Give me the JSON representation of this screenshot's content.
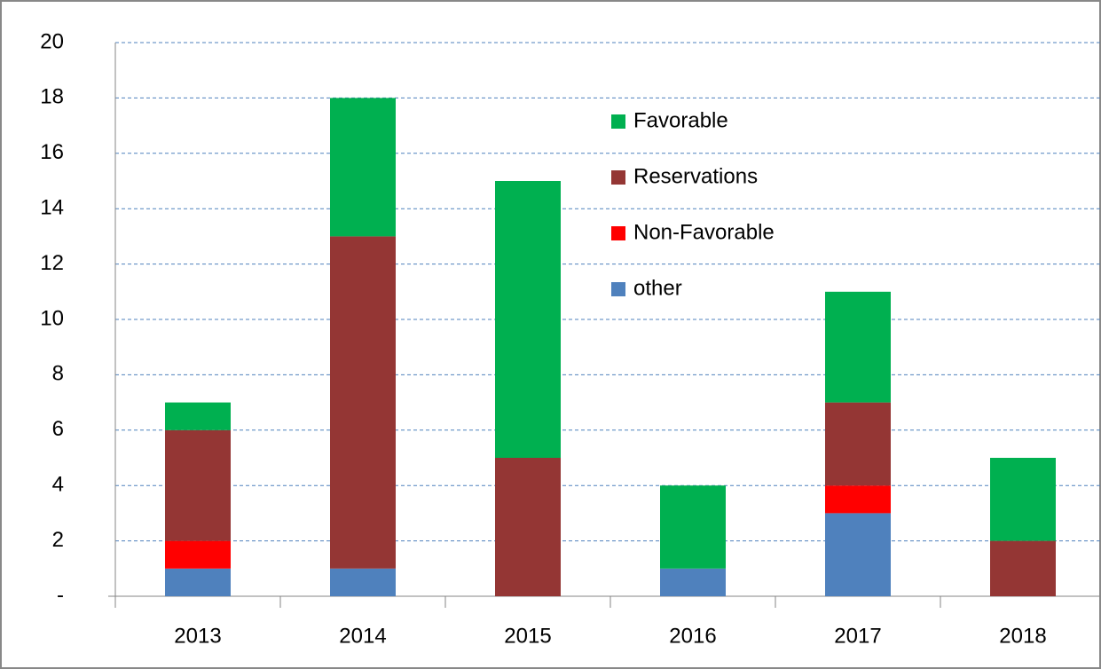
{
  "chart_data": {
    "type": "stacked_bar",
    "categories": [
      "2013",
      "2014",
      "2015",
      "2016",
      "2017",
      "2018"
    ],
    "series": [
      {
        "name": "other",
        "color": "#4f81bd",
        "values": [
          1,
          1,
          0,
          1,
          3,
          0
        ]
      },
      {
        "name": "Non-Favorable",
        "color": "#ff0000",
        "values": [
          1,
          0,
          0,
          0,
          1,
          0
        ]
      },
      {
        "name": "Reservations",
        "color": "#943634",
        "values": [
          4,
          12,
          5,
          0,
          3,
          2
        ]
      },
      {
        "name": "Favorable",
        "color": "#00b050",
        "values": [
          1,
          5,
          10,
          3,
          4,
          3
        ]
      }
    ],
    "ylim": [
      0,
      20
    ],
    "yticks": [
      {
        "value": 0,
        "label": "-"
      },
      2,
      4,
      6,
      8,
      10,
      12,
      14,
      16,
      18,
      20
    ],
    "grid": true,
    "legend": "top-center"
  }
}
